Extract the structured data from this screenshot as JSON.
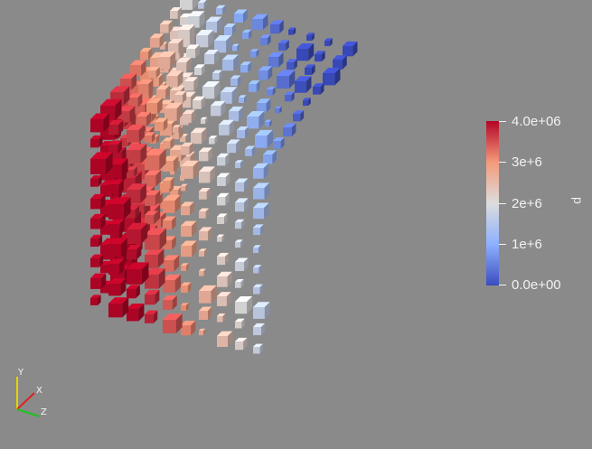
{
  "scene": {
    "field_name": "p",
    "colormap": [
      "#3b4cc0",
      "#8db0fe",
      "#dddddd",
      "#f49a7b",
      "#b40426"
    ],
    "background": "#8a8a8a"
  },
  "colorbar": {
    "title": "p",
    "range": [
      0,
      4000000
    ],
    "ticks": [
      {
        "label": "4.0e+06",
        "value": 4000000
      },
      {
        "label": "3e+6",
        "value": 3000000
      },
      {
        "label": "2e+6",
        "value": 2000000
      },
      {
        "label": "1e+6",
        "value": 1000000
      },
      {
        "label": "0.0e+00",
        "value": 0
      }
    ]
  },
  "orientation_axes": {
    "x_label": "X",
    "y_label": "Y",
    "z_label": "Z",
    "x_color": "#e0201b",
    "y_color": "#e6d200",
    "z_color": "#20c020"
  }
}
